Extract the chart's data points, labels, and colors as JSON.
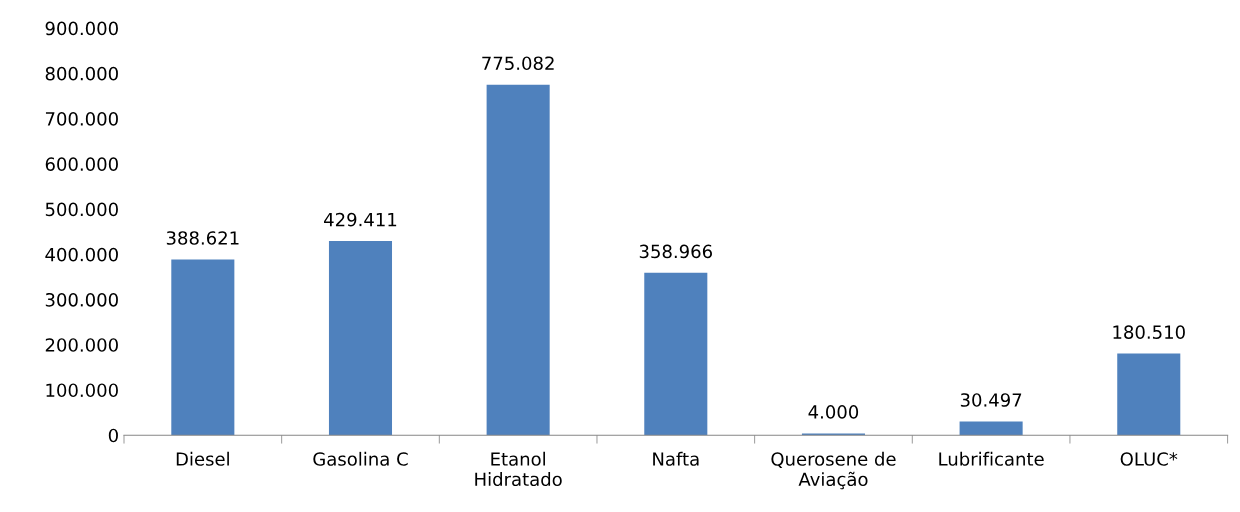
{
  "chart_data": {
    "type": "bar",
    "categories": [
      "Diesel",
      "Gasolina C",
      "Etanol\nHidratado",
      "Nafta",
      "Querosene de\nAviação",
      "Lubrificante",
      "OLUC*"
    ],
    "values": [
      388621,
      429411,
      775082,
      358966,
      4000,
      30497,
      180510
    ],
    "value_labels": [
      "388.621",
      "429.411",
      "775.082",
      "358.966",
      "4.000",
      "30.497",
      "180.510"
    ],
    "color": "#4f81bd",
    "ylim": [
      0,
      900000
    ],
    "yticks": [
      {
        "value": 0,
        "label": "0"
      },
      {
        "value": 100000,
        "label": "100.000"
      },
      {
        "value": 200000,
        "label": "200.000"
      },
      {
        "value": 300000,
        "label": "300.000"
      },
      {
        "value": 400000,
        "label": "400.000"
      },
      {
        "value": 500000,
        "label": "500.000"
      },
      {
        "value": 600000,
        "label": "600.000"
      },
      {
        "value": 700000,
        "label": "700.000"
      },
      {
        "value": 800000,
        "label": "800.000"
      },
      {
        "value": 900000,
        "label": "900.000"
      }
    ],
    "grid": false,
    "legend": false
  }
}
